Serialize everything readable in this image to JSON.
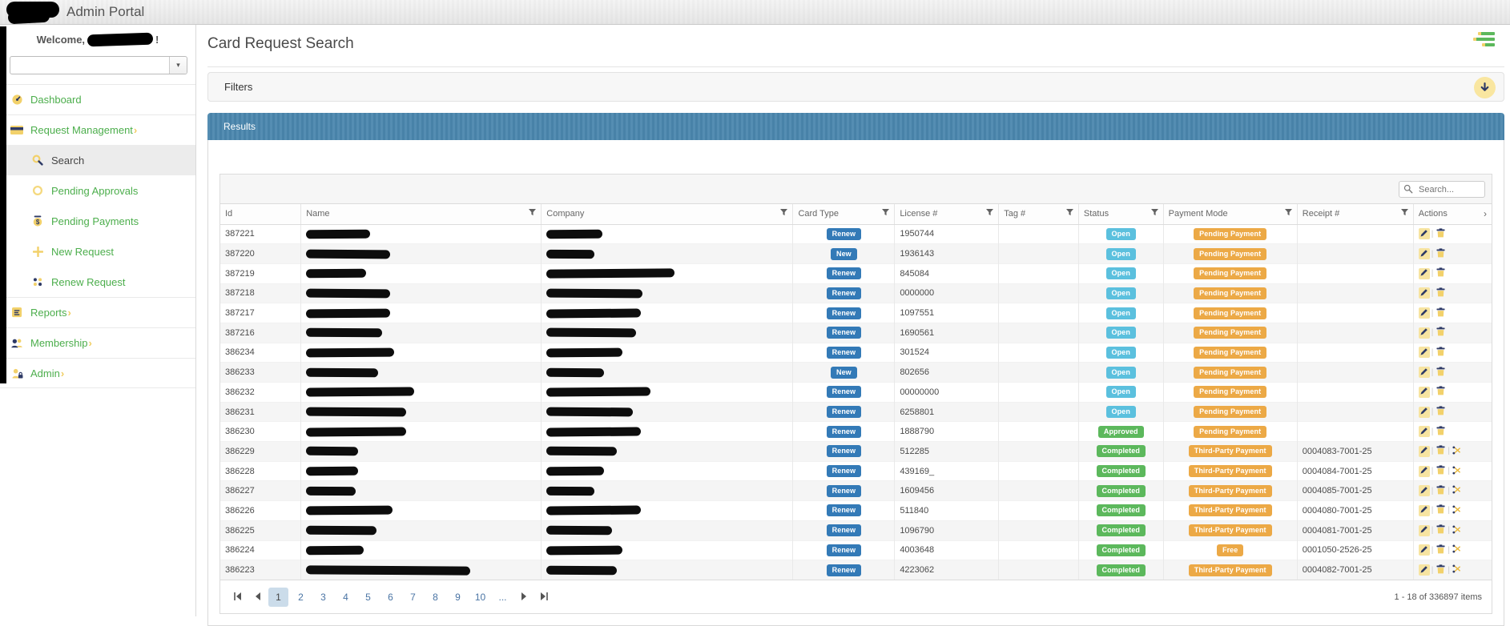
{
  "topbar": {
    "title": "Admin Portal"
  },
  "sidebar": {
    "welcome_prefix": "Welcome,",
    "welcome_suffix": "!",
    "menu": [
      {
        "label": "Dashboard",
        "icon": "dashboard-icon",
        "top": true
      },
      {
        "label": "Request Management",
        "icon": "credit-card-icon",
        "top": true,
        "expandable": true
      },
      {
        "label": "Search",
        "icon": "search-icon",
        "sub": true,
        "active": true
      },
      {
        "label": "Pending Approvals",
        "icon": "pending-circle-icon",
        "sub": true
      },
      {
        "label": "Pending Payments",
        "icon": "coin-icon",
        "sub": true
      },
      {
        "label": "New Request",
        "icon": "plus-icon",
        "sub": true
      },
      {
        "label": "Renew Request",
        "icon": "renew-icon",
        "sub": true
      },
      {
        "label": "Reports",
        "icon": "report-icon",
        "top": true,
        "expandable": true
      },
      {
        "label": "Membership",
        "icon": "people-icon",
        "top": true,
        "expandable": true
      },
      {
        "label": "Admin",
        "icon": "admin-lock-icon",
        "top": true,
        "expandable": true
      }
    ]
  },
  "main": {
    "page_title": "Card Request Search",
    "filters_label": "Filters",
    "results_label": "Results",
    "search_placeholder": "Search..."
  },
  "grid": {
    "columns": [
      {
        "label": "Id"
      },
      {
        "label": "Name",
        "filter": true
      },
      {
        "label": "Company",
        "filter": true
      },
      {
        "label": "Card Type",
        "filter": true
      },
      {
        "label": "License #",
        "filter": true
      },
      {
        "label": "Tag #",
        "filter": true
      },
      {
        "label": "Status",
        "filter": true
      },
      {
        "label": "Payment Mode",
        "filter": true
      },
      {
        "label": "Receipt #",
        "filter": true
      },
      {
        "label": "Actions",
        "arrow": true
      }
    ],
    "rows": [
      {
        "id": "387221",
        "card_type": "Renew",
        "license": "1950744",
        "tag": "",
        "status": "Open",
        "payment": "Pending Payment",
        "receipt": "",
        "actions": [
          "edit",
          "delete"
        ],
        "name_w": 80,
        "company_w": 70
      },
      {
        "id": "387220",
        "card_type": "New",
        "license": "1936143",
        "tag": "",
        "status": "Open",
        "payment": "Pending Payment",
        "receipt": "",
        "actions": [
          "edit",
          "delete"
        ],
        "name_w": 105,
        "company_w": 60
      },
      {
        "id": "387219",
        "card_type": "Renew",
        "license": "845084",
        "tag": "",
        "status": "Open",
        "payment": "Pending Payment",
        "receipt": "",
        "actions": [
          "edit",
          "delete"
        ],
        "name_w": 75,
        "company_w": 160
      },
      {
        "id": "387218",
        "card_type": "Renew",
        "license": "0000000",
        "tag": "",
        "status": "Open",
        "payment": "Pending Payment",
        "receipt": "",
        "actions": [
          "edit",
          "delete"
        ],
        "name_w": 105,
        "company_w": 120
      },
      {
        "id": "387217",
        "card_type": "Renew",
        "license": "1097551",
        "tag": "",
        "status": "Open",
        "payment": "Pending Payment",
        "receipt": "",
        "actions": [
          "edit",
          "delete"
        ],
        "name_w": 105,
        "company_w": 118
      },
      {
        "id": "387216",
        "card_type": "Renew",
        "license": "1690561",
        "tag": "",
        "status": "Open",
        "payment": "Pending Payment",
        "receipt": "",
        "actions": [
          "edit",
          "delete"
        ],
        "name_w": 95,
        "company_w": 112
      },
      {
        "id": "386234",
        "card_type": "Renew",
        "license": "301524",
        "tag": "",
        "status": "Open",
        "payment": "Pending Payment",
        "receipt": "",
        "actions": [
          "edit",
          "delete"
        ],
        "name_w": 110,
        "company_w": 95
      },
      {
        "id": "386233",
        "card_type": "New",
        "license": "802656",
        "tag": "",
        "status": "Open",
        "payment": "Pending Payment",
        "receipt": "",
        "actions": [
          "edit",
          "delete"
        ],
        "name_w": 90,
        "company_w": 72
      },
      {
        "id": "386232",
        "card_type": "Renew",
        "license": "00000000",
        "tag": "",
        "status": "Open",
        "payment": "Pending Payment",
        "receipt": "",
        "actions": [
          "edit",
          "delete"
        ],
        "name_w": 135,
        "company_w": 130
      },
      {
        "id": "386231",
        "card_type": "Renew",
        "license": "6258801",
        "tag": "",
        "status": "Open",
        "payment": "Pending Payment",
        "receipt": "",
        "actions": [
          "edit",
          "delete"
        ],
        "name_w": 125,
        "company_w": 108
      },
      {
        "id": "386230",
        "card_type": "Renew",
        "license": "1888790",
        "tag": "",
        "status": "Approved",
        "payment": "Pending Payment",
        "receipt": "",
        "actions": [
          "edit",
          "delete"
        ],
        "name_w": 125,
        "company_w": 118
      },
      {
        "id": "386229",
        "card_type": "Renew",
        "license": "512285",
        "tag": "",
        "status": "Completed",
        "payment": "Third-Party Payment",
        "receipt": "0004083-7001-25",
        "actions": [
          "edit",
          "delete",
          "print"
        ],
        "name_w": 65,
        "company_w": 88
      },
      {
        "id": "386228",
        "card_type": "Renew",
        "license": "439169_",
        "tag": "",
        "status": "Completed",
        "payment": "Third-Party Payment",
        "receipt": "0004084-7001-25",
        "actions": [
          "edit",
          "delete",
          "print"
        ],
        "name_w": 65,
        "company_w": 72
      },
      {
        "id": "386227",
        "card_type": "Renew",
        "license": "1609456",
        "tag": "",
        "status": "Completed",
        "payment": "Third-Party Payment",
        "receipt": "0004085-7001-25",
        "actions": [
          "edit",
          "delete",
          "print"
        ],
        "name_w": 62,
        "company_w": 60
      },
      {
        "id": "386226",
        "card_type": "Renew",
        "license": "511840",
        "tag": "",
        "status": "Completed",
        "payment": "Third-Party Payment",
        "receipt": "0004080-7001-25",
        "actions": [
          "edit",
          "delete",
          "print"
        ],
        "name_w": 108,
        "company_w": 118
      },
      {
        "id": "386225",
        "card_type": "Renew",
        "license": "1096790",
        "tag": "",
        "status": "Completed",
        "payment": "Third-Party Payment",
        "receipt": "0004081-7001-25",
        "actions": [
          "edit",
          "delete",
          "print"
        ],
        "name_w": 88,
        "company_w": 82
      },
      {
        "id": "386224",
        "card_type": "Renew",
        "license": "4003648",
        "tag": "",
        "status": "Completed",
        "payment": "Free",
        "receipt": "0001050-2526-25",
        "actions": [
          "edit",
          "delete",
          "print"
        ],
        "name_w": 72,
        "company_w": 95
      },
      {
        "id": "386223",
        "card_type": "Renew",
        "license": "4223062",
        "tag": "",
        "status": "Completed",
        "payment": "Third-Party Payment",
        "receipt": "0004082-7001-25",
        "actions": [
          "edit",
          "delete",
          "print"
        ],
        "name_w": 205,
        "company_w": 88
      }
    ]
  },
  "pager": {
    "pages": [
      "1",
      "2",
      "3",
      "4",
      "5",
      "6",
      "7",
      "8",
      "9",
      "10",
      "..."
    ],
    "active_page": "1",
    "info": "1 - 18 of 336897 items"
  },
  "colors": {
    "menu_green": "#4cae4c",
    "icon_yellow": "#f2d16b",
    "icon_navy": "#2e3a66",
    "badge_blue": "#337ab7",
    "badge_cyan": "#5bc0de",
    "badge_green": "#5cb85c",
    "badge_orange": "#eca946",
    "results_header_blue": "#4a86ad",
    "active_page_bg": "#cbdcea"
  }
}
